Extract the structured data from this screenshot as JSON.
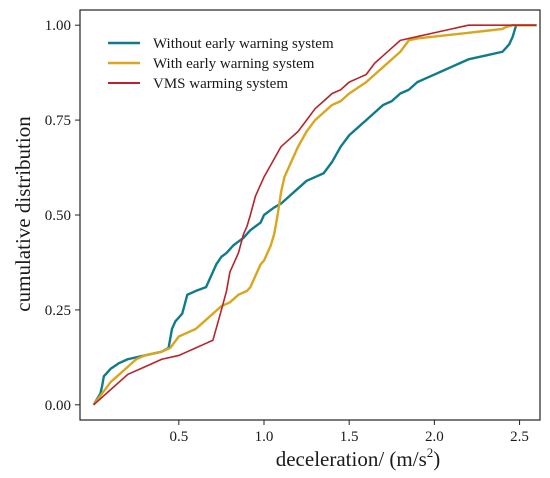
{
  "chart_data": {
    "type": "line",
    "xlabel": "deceleration/ (m/s",
    "xlabel_sup": "2",
    "xlabel_close": ")",
    "ylabel": "cumulative distribution",
    "xlim": [
      -0.08,
      2.62
    ],
    "ylim": [
      -0.04,
      1.04
    ],
    "x_ticks": [
      {
        "value": 0.5,
        "label": "0.5"
      },
      {
        "value": 1.0,
        "label": "1.0"
      },
      {
        "value": 1.5,
        "label": "1.5"
      },
      {
        "value": 2.0,
        "label": "2.0"
      },
      {
        "value": 2.5,
        "label": "2.5"
      }
    ],
    "y_ticks": [
      {
        "value": 0.0,
        "label": "0.00"
      },
      {
        "value": 0.25,
        "label": "0.25"
      },
      {
        "value": 0.5,
        "label": "0.50"
      },
      {
        "value": 0.75,
        "label": "0.75"
      },
      {
        "value": 1.0,
        "label": "1.00"
      }
    ],
    "grid": false,
    "legend_position": "top-left",
    "series": [
      {
        "name": "Without early warning system",
        "color": "#0f7b8c",
        "x": [
          0.0,
          0.04,
          0.05,
          0.06,
          0.08,
          0.1,
          0.15,
          0.2,
          0.3,
          0.4,
          0.44,
          0.46,
          0.48,
          0.5,
          0.52,
          0.55,
          0.6,
          0.66,
          0.68,
          0.7,
          0.72,
          0.75,
          0.78,
          0.8,
          0.82,
          0.85,
          0.88,
          0.9,
          0.92,
          0.95,
          0.98,
          1.0,
          1.03,
          1.06,
          1.1,
          1.15,
          1.2,
          1.25,
          1.3,
          1.35,
          1.4,
          1.45,
          1.5,
          1.55,
          1.6,
          1.65,
          1.7,
          1.75,
          1.8,
          1.85,
          1.9,
          1.95,
          2.0,
          2.05,
          2.1,
          2.15,
          2.2,
          2.3,
          2.4,
          2.44,
          2.46,
          2.48,
          2.6
        ],
        "y": [
          0.0,
          0.03,
          0.05,
          0.075,
          0.085,
          0.095,
          0.11,
          0.12,
          0.13,
          0.14,
          0.15,
          0.2,
          0.22,
          0.23,
          0.24,
          0.29,
          0.3,
          0.31,
          0.33,
          0.35,
          0.37,
          0.39,
          0.4,
          0.41,
          0.42,
          0.43,
          0.44,
          0.45,
          0.46,
          0.47,
          0.48,
          0.5,
          0.51,
          0.52,
          0.53,
          0.55,
          0.57,
          0.59,
          0.6,
          0.61,
          0.64,
          0.68,
          0.71,
          0.73,
          0.75,
          0.77,
          0.79,
          0.8,
          0.82,
          0.83,
          0.85,
          0.86,
          0.87,
          0.88,
          0.89,
          0.9,
          0.91,
          0.92,
          0.93,
          0.95,
          0.97,
          1.0,
          1.0
        ]
      },
      {
        "name": "With  early warning system",
        "color": "#d9a61e",
        "x": [
          0.0,
          0.05,
          0.1,
          0.2,
          0.25,
          0.3,
          0.4,
          0.45,
          0.5,
          0.55,
          0.6,
          0.65,
          0.7,
          0.75,
          0.8,
          0.85,
          0.9,
          0.92,
          0.95,
          0.98,
          1.0,
          1.02,
          1.04,
          1.06,
          1.08,
          1.1,
          1.12,
          1.15,
          1.2,
          1.25,
          1.3,
          1.35,
          1.4,
          1.45,
          1.5,
          1.6,
          1.65,
          1.7,
          1.75,
          1.8,
          1.85,
          1.9,
          2.0,
          2.1,
          2.2,
          2.3,
          2.4,
          2.42,
          2.46,
          2.6
        ],
        "y": [
          0.0,
          0.03,
          0.06,
          0.1,
          0.12,
          0.13,
          0.14,
          0.15,
          0.18,
          0.19,
          0.2,
          0.22,
          0.24,
          0.26,
          0.27,
          0.29,
          0.3,
          0.31,
          0.34,
          0.37,
          0.38,
          0.4,
          0.42,
          0.45,
          0.5,
          0.56,
          0.6,
          0.63,
          0.68,
          0.72,
          0.75,
          0.77,
          0.79,
          0.8,
          0.82,
          0.85,
          0.87,
          0.89,
          0.91,
          0.93,
          0.96,
          0.965,
          0.97,
          0.975,
          0.98,
          0.985,
          0.99,
          0.995,
          1.0,
          1.0
        ]
      },
      {
        "name": "VMS warming system",
        "color": "#b5252b",
        "x": [
          0.0,
          0.1,
          0.2,
          0.3,
          0.4,
          0.5,
          0.55,
          0.6,
          0.65,
          0.7,
          0.75,
          0.78,
          0.8,
          0.85,
          0.88,
          0.9,
          0.92,
          0.95,
          1.0,
          1.05,
          1.1,
          1.15,
          1.2,
          1.25,
          1.3,
          1.35,
          1.4,
          1.45,
          1.5,
          1.55,
          1.6,
          1.65,
          1.7,
          1.75,
          1.8,
          1.9,
          2.0,
          2.05,
          2.1,
          2.15,
          2.2,
          2.3,
          2.4,
          2.5,
          2.6
        ],
        "y": [
          0.0,
          0.04,
          0.08,
          0.1,
          0.12,
          0.13,
          0.14,
          0.15,
          0.16,
          0.17,
          0.25,
          0.3,
          0.35,
          0.4,
          0.45,
          0.47,
          0.5,
          0.55,
          0.6,
          0.64,
          0.68,
          0.7,
          0.72,
          0.75,
          0.78,
          0.8,
          0.82,
          0.83,
          0.85,
          0.86,
          0.87,
          0.9,
          0.92,
          0.94,
          0.96,
          0.97,
          0.98,
          0.985,
          0.99,
          0.995,
          1.0,
          1.0,
          1.0,
          1.0,
          1.0
        ]
      }
    ]
  }
}
